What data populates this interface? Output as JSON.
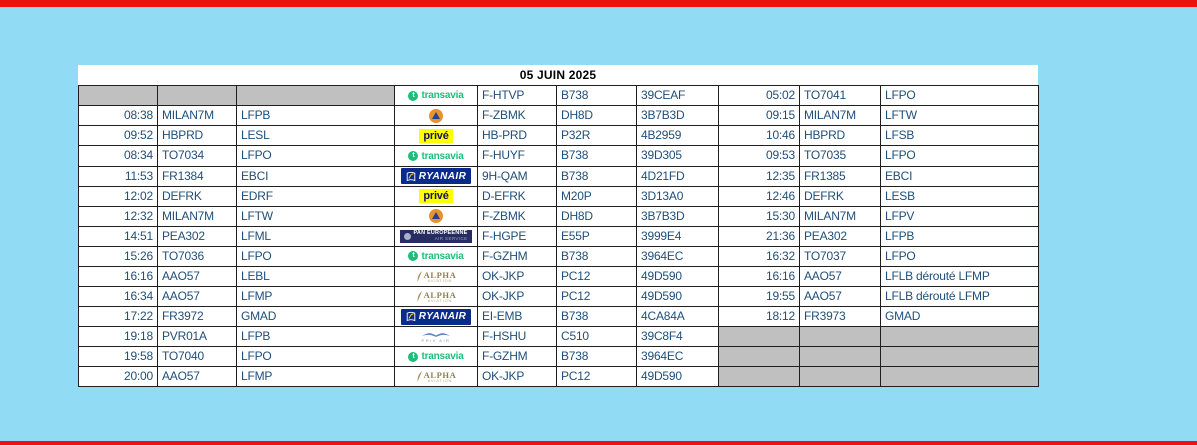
{
  "page": {
    "background_color": "#92DBF4",
    "bar_color": "#EE1111"
  },
  "sheet": {
    "title": "05 JUIN 2025",
    "columns": [
      "arrival_time",
      "arrival_callsign",
      "origin",
      "operator",
      "registration",
      "aircraft_type",
      "hex_code",
      "departure_time",
      "departure_callsign",
      "destination"
    ],
    "colors": {
      "flight_text": "#1F4E79",
      "aircraft_text": "#1E2230",
      "empty_cell": "#C0C0C0"
    },
    "operators": {
      "transavia": {
        "label": "transavia",
        "color": "#1EBE7A"
      },
      "secu": {
        "label": "securite-civile",
        "circle_color": "#E8922E",
        "triangle_color": "#25408F"
      },
      "prive": {
        "label": "privé",
        "bg": "#FFFF00",
        "fg": "#141452"
      },
      "ryanair": {
        "label": "RYANAIR",
        "bg": "#0A2B8A",
        "fg": "#FFFFFF"
      },
      "paneuropeenne": {
        "label": "PAN EUROPEENNE",
        "sub": "AIR SERVICE",
        "bg": "#272D62"
      },
      "alpha": {
        "label": "ALPHA",
        "sub": "AVIATION",
        "fg": "#8F7C52"
      },
      "privair": {
        "label": "PRIV AIR",
        "fg": "#5B85C4"
      }
    },
    "rows": [
      {
        "arr_time": "",
        "arr_cs": "",
        "origin": "",
        "op": "transavia",
        "reg": "F-HTVP",
        "type": "B738",
        "hex": "39CEAF",
        "dep_time": "05:02",
        "dep_cs": "TO7041",
        "dest": "LFPO",
        "arr_empty": true,
        "dep_empty": false
      },
      {
        "arr_time": "08:38",
        "arr_cs": "MILAN7M",
        "origin": "LFPB",
        "op": "secu",
        "reg": "F-ZBMK",
        "type": "DH8D",
        "hex": "3B7B3D",
        "dep_time": "09:15",
        "dep_cs": "MILAN7M",
        "dest": "LFTW",
        "arr_empty": false,
        "dep_empty": false
      },
      {
        "arr_time": "09:52",
        "arr_cs": "HBPRD",
        "origin": "LESL",
        "op": "prive",
        "reg": "HB-PRD",
        "type": "P32R",
        "hex": "4B2959",
        "dep_time": "10:46",
        "dep_cs": "HBPRD",
        "dest": "LFSB",
        "arr_empty": false,
        "dep_empty": false
      },
      {
        "arr_time": "08:34",
        "arr_cs": "TO7034",
        "origin": "LFPO",
        "op": "transavia",
        "reg": "F-HUYF",
        "type": "B738",
        "hex": "39D305",
        "dep_time": "09:53",
        "dep_cs": "TO7035",
        "dest": "LFPO",
        "arr_empty": false,
        "dep_empty": false
      },
      {
        "arr_time": "11:53",
        "arr_cs": "FR1384",
        "origin": "EBCI",
        "op": "ryanair",
        "reg": "9H-QAM",
        "type": "B738",
        "hex": "4D21FD",
        "dep_time": "12:35",
        "dep_cs": "FR1385",
        "dest": "EBCI",
        "arr_empty": false,
        "dep_empty": false
      },
      {
        "arr_time": "12:02",
        "arr_cs": "DEFRK",
        "origin": "EDRF",
        "op": "prive",
        "reg": "D-EFRK",
        "type": "M20P",
        "hex": "3D13A0",
        "dep_time": "12:46",
        "dep_cs": "DEFRK",
        "dest": "LESB",
        "arr_empty": false,
        "dep_empty": false
      },
      {
        "arr_time": "12:32",
        "arr_cs": "MILAN7M",
        "origin": "LFTW",
        "op": "secu",
        "reg": "F-ZBMK",
        "type": "DH8D",
        "hex": "3B7B3D",
        "dep_time": "15:30",
        "dep_cs": "MILAN7M",
        "dest": "LFPV",
        "arr_empty": false,
        "dep_empty": false
      },
      {
        "arr_time": "14:51",
        "arr_cs": "PEA302",
        "origin": "LFML",
        "op": "paneuropeenne",
        "reg": "F-HGPE",
        "type": "E55P",
        "hex": "3999E4",
        "dep_time": "21:36",
        "dep_cs": "PEA302",
        "dest": "LFPB",
        "arr_empty": false,
        "dep_empty": false
      },
      {
        "arr_time": "15:26",
        "arr_cs": "TO7036",
        "origin": "LFPO",
        "op": "transavia",
        "reg": "F-GZHM",
        "type": "B738",
        "hex": "3964EC",
        "dep_time": "16:32",
        "dep_cs": "TO7037",
        "dest": "LFPO",
        "arr_empty": false,
        "dep_empty": false
      },
      {
        "arr_time": "16:16",
        "arr_cs": "AAO57",
        "origin": "LEBL",
        "op": "alpha",
        "reg": "OK-JKP",
        "type": "PC12",
        "hex": "49D590",
        "dep_time": "16:16",
        "dep_cs": "AAO57",
        "dest": "LFLB dérouté LFMP",
        "arr_empty": false,
        "dep_empty": false
      },
      {
        "arr_time": "16:34",
        "arr_cs": "AAO57",
        "origin": "LFMP",
        "op": "alpha",
        "reg": "OK-JKP",
        "type": "PC12",
        "hex": "49D590",
        "dep_time": "19:55",
        "dep_cs": "AAO57",
        "dest": "LFLB dérouté LFMP",
        "arr_empty": false,
        "dep_empty": false
      },
      {
        "arr_time": "17:22",
        "arr_cs": "FR3972",
        "origin": "GMAD",
        "op": "ryanair",
        "reg": "EI-EMB",
        "type": "B738",
        "hex": "4CA84A",
        "dep_time": "18:12",
        "dep_cs": "FR3973",
        "dest": "GMAD",
        "arr_empty": false,
        "dep_empty": false
      },
      {
        "arr_time": "19:18",
        "arr_cs": "PVR01A",
        "origin": "LFPB",
        "op": "privair",
        "reg": "F-HSHU",
        "type": "C510",
        "hex": "39C8F4",
        "dep_time": "",
        "dep_cs": "",
        "dest": "",
        "arr_empty": false,
        "dep_empty": true
      },
      {
        "arr_time": "19:58",
        "arr_cs": "TO7040",
        "origin": "LFPO",
        "op": "transavia",
        "reg": "F-GZHM",
        "type": "B738",
        "hex": "3964EC",
        "dep_time": "",
        "dep_cs": "",
        "dest": "",
        "arr_empty": false,
        "dep_empty": true
      },
      {
        "arr_time": "20:00",
        "arr_cs": "AAO57",
        "origin": "LFMP",
        "op": "alpha",
        "reg": "OK-JKP",
        "type": "PC12",
        "hex": "49D590",
        "dep_time": "",
        "dep_cs": "",
        "dest": "",
        "arr_empty": false,
        "dep_empty": true
      }
    ]
  }
}
